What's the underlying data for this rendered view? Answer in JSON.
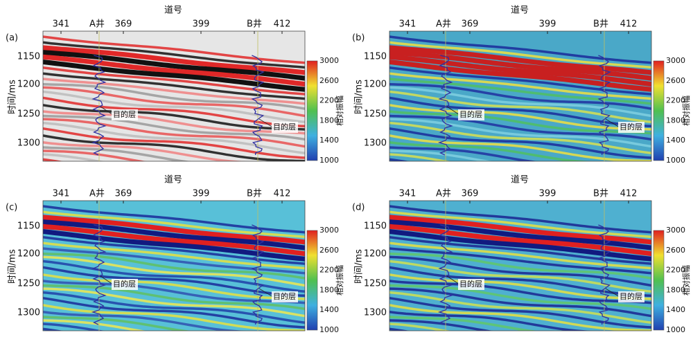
{
  "panels": [
    {
      "tag": "(a)",
      "x_axis_title": "道号",
      "x_ticks": [
        "341",
        "A井",
        "369",
        "399",
        "B井",
        "412"
      ],
      "y_axis_title": "时间/ms",
      "y_ticks": [
        "1150",
        "1200",
        "1250",
        "1300"
      ],
      "colorbar_title": "相对振幅",
      "colorbar_ticks": [
        "3000",
        "2600",
        "2200",
        "1800",
        "1400",
        "1000"
      ],
      "annotations": [
        "目的层",
        "目的层"
      ]
    },
    {
      "tag": "(b)",
      "x_axis_title": "道号",
      "x_ticks": [
        "341",
        "A井",
        "369",
        "399",
        "B井",
        "412"
      ],
      "y_axis_title": "时间/ms",
      "y_ticks": [
        "1150",
        "1200",
        "1250",
        "1300"
      ],
      "colorbar_title": "相对振幅",
      "colorbar_ticks": [
        "3000",
        "2600",
        "2200",
        "1800",
        "1400",
        "1000"
      ],
      "annotations": [
        "目的层",
        "目的层"
      ]
    },
    {
      "tag": "(c)",
      "x_axis_title": "道号",
      "x_ticks": [
        "341",
        "A井",
        "369",
        "399",
        "B井",
        "412"
      ],
      "y_axis_title": "时间/ms",
      "y_ticks": [
        "1150",
        "1200",
        "1250",
        "1300"
      ],
      "colorbar_title": "相对振幅",
      "colorbar_ticks": [
        "3000",
        "2600",
        "2200",
        "1800",
        "1400",
        "1000"
      ],
      "annotations": [
        "目的层",
        "目的层"
      ]
    },
    {
      "tag": "(d)",
      "x_axis_title": "道号",
      "x_ticks": [
        "341",
        "A井",
        "369",
        "399",
        "B井",
        "412"
      ],
      "y_axis_title": "时间/ms",
      "y_ticks": [
        "1150",
        "1200",
        "1250",
        "1300"
      ],
      "colorbar_title": "相对振幅",
      "colorbar_ticks": [
        "3000",
        "2600",
        "2200",
        "1800",
        "1400",
        "1000"
      ],
      "annotations": [
        "目的层",
        "目的层"
      ]
    }
  ]
}
